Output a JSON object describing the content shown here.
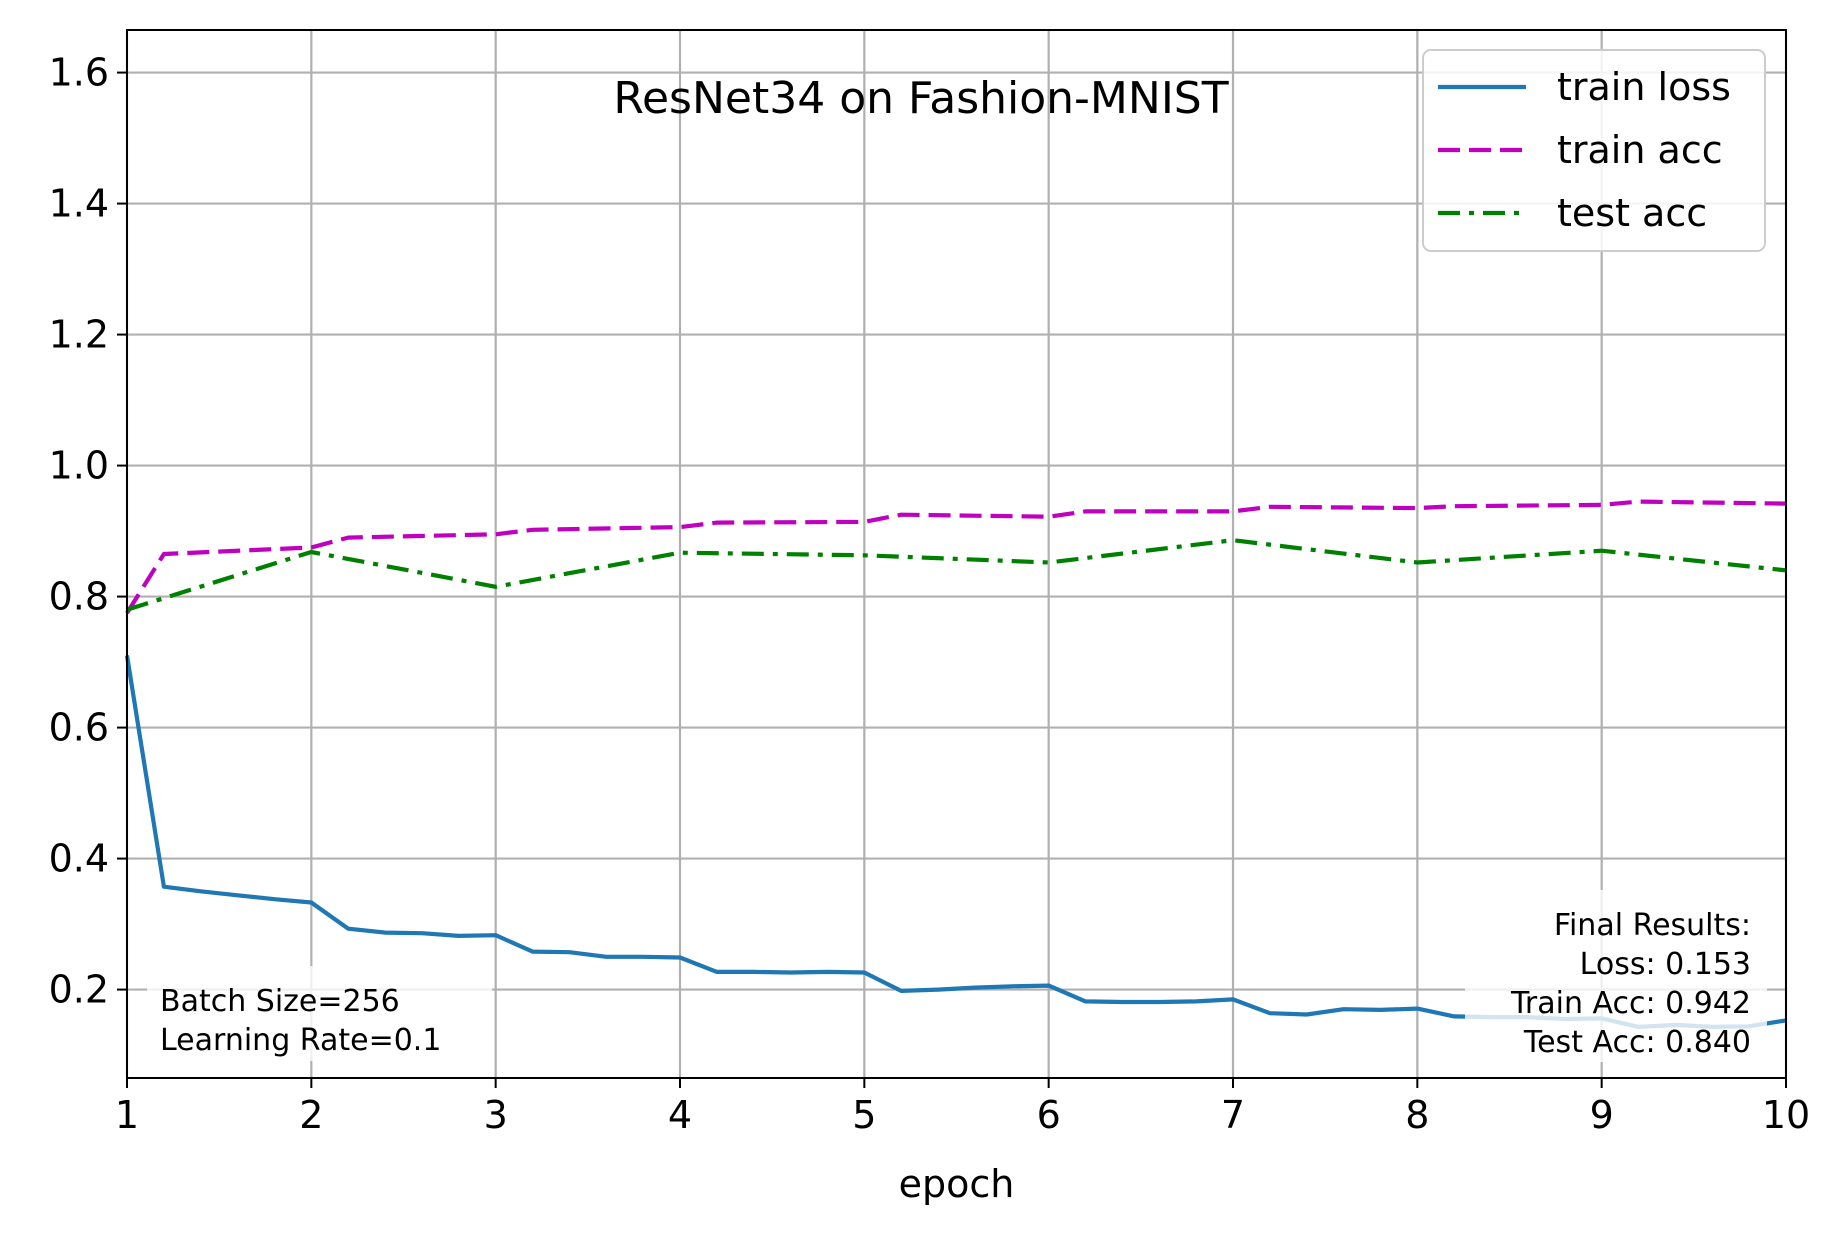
{
  "chart_data": {
    "type": "line",
    "title": "ResNet34 on Fashion-MNIST",
    "xlabel": "epoch",
    "ylabel": "",
    "xlim": [
      1,
      10
    ],
    "ylim": [
      0.065,
      1.665
    ],
    "xticks": [
      1,
      2,
      3,
      4,
      5,
      6,
      7,
      8,
      9,
      10
    ],
    "xtick_labels": [
      "1",
      "2",
      "3",
      "4",
      "5",
      "6",
      "7",
      "8",
      "9",
      "10"
    ],
    "yticks": [
      0.2,
      0.4,
      0.6,
      0.8,
      1.0,
      1.2,
      1.4,
      1.6
    ],
    "ytick_labels": [
      "0.2",
      "0.4",
      "0.6",
      "0.8",
      "1.0",
      "1.2",
      "1.4",
      "1.6"
    ],
    "grid": true,
    "legend_position": "top-right",
    "series": [
      {
        "name": "train loss",
        "color": "#1f77b4",
        "style": "solid",
        "x": [
          1.0,
          1.2,
          1.4,
          1.6,
          1.8,
          2.0,
          2.2,
          2.4,
          2.6,
          2.8,
          3.0,
          3.2,
          3.4,
          3.6,
          3.8,
          4.0,
          4.2,
          4.4,
          4.6,
          4.8,
          5.0,
          5.2,
          5.4,
          5.6,
          5.8,
          6.0,
          6.2,
          6.4,
          6.6,
          6.8,
          7.0,
          7.2,
          7.4,
          7.6,
          7.8,
          8.0,
          8.2,
          8.4,
          8.6,
          8.8,
          9.0,
          9.2,
          9.4,
          9.6,
          9.8,
          10.0
        ],
        "y": [
          0.71,
          0.357,
          0.35,
          0.344,
          0.338,
          0.333,
          0.293,
          0.287,
          0.286,
          0.282,
          0.283,
          0.258,
          0.257,
          0.25,
          0.25,
          0.249,
          0.227,
          0.227,
          0.226,
          0.227,
          0.226,
          0.198,
          0.2,
          0.203,
          0.205,
          0.206,
          0.182,
          0.181,
          0.181,
          0.182,
          0.185,
          0.164,
          0.162,
          0.17,
          0.169,
          0.171,
          0.159,
          0.158,
          0.158,
          0.155,
          0.156,
          0.143,
          0.146,
          0.143,
          0.144,
          0.153
        ]
      },
      {
        "name": "train acc",
        "color": "#bf00bf",
        "style": "dashed",
        "x": [
          1.0,
          1.2,
          2.0,
          2.2,
          3.0,
          3.2,
          4.0,
          4.2,
          5.0,
          5.2,
          6.0,
          6.2,
          7.0,
          7.2,
          8.0,
          8.2,
          9.0,
          9.2,
          10.0
        ],
        "y": [
          0.775,
          0.865,
          0.875,
          0.89,
          0.895,
          0.902,
          0.906,
          0.913,
          0.914,
          0.925,
          0.922,
          0.93,
          0.93,
          0.937,
          0.935,
          0.938,
          0.94,
          0.945,
          0.942
        ]
      },
      {
        "name": "test acc",
        "color": "#008000",
        "style": "dashdot",
        "x": [
          1,
          2,
          3,
          4,
          5,
          6,
          7,
          8,
          9,
          10
        ],
        "y": [
          0.78,
          0.868,
          0.815,
          0.867,
          0.863,
          0.852,
          0.886,
          0.852,
          0.87,
          0.84
        ]
      }
    ],
    "annotations": {
      "left_lines": [
        "Batch Size=256",
        "Learning Rate=0.1"
      ],
      "right_lines": [
        "Final Results:",
        "Loss: 0.153",
        "Train Acc: 0.942",
        "Test Acc: 0.840"
      ]
    }
  }
}
